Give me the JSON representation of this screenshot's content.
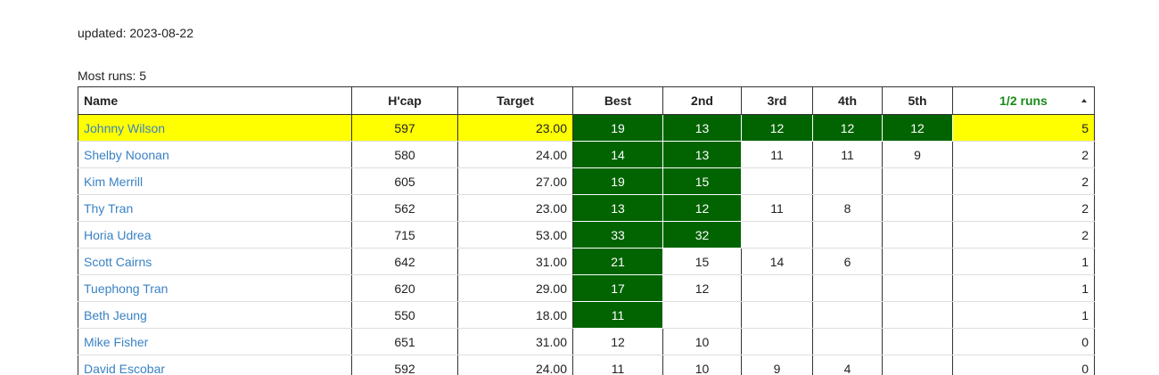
{
  "updated_text": "updated: 2023-08-22",
  "most_runs_text": "Most runs: 5",
  "headers": [
    "Name",
    "H'cap",
    "Target",
    "Best",
    "2nd",
    "3rd",
    "4th",
    "5th",
    "1/2 runs"
  ],
  "colors": {
    "green_cell": "#016401",
    "highlight_row": "#ffff00",
    "link": "#3a82c4",
    "runs_header": "#198a19"
  },
  "rows": [
    {
      "name": "Johnny Wilson",
      "hcap": "597",
      "target": "23.00",
      "runs": [
        "19",
        "13",
        "12",
        "12",
        "12"
      ],
      "green": 5,
      "half": "5",
      "highlight": true
    },
    {
      "name": "Shelby Noonan",
      "hcap": "580",
      "target": "24.00",
      "runs": [
        "14",
        "13",
        "11",
        "11",
        "9"
      ],
      "green": 2,
      "half": "2"
    },
    {
      "name": "Kim Merrill",
      "hcap": "605",
      "target": "27.00",
      "runs": [
        "19",
        "15",
        "",
        "",
        ""
      ],
      "green": 2,
      "half": "2"
    },
    {
      "name": "Thy Tran",
      "hcap": "562",
      "target": "23.00",
      "runs": [
        "13",
        "12",
        "11",
        "8",
        ""
      ],
      "green": 2,
      "half": "2"
    },
    {
      "name": "Horia Udrea",
      "hcap": "715",
      "target": "53.00",
      "runs": [
        "33",
        "32",
        "",
        "",
        ""
      ],
      "green": 2,
      "half": "2"
    },
    {
      "name": "Scott Cairns",
      "hcap": "642",
      "target": "31.00",
      "runs": [
        "21",
        "15",
        "14",
        "6",
        ""
      ],
      "green": 1,
      "half": "1"
    },
    {
      "name": "Tuephong Tran",
      "hcap": "620",
      "target": "29.00",
      "runs": [
        "17",
        "12",
        "",
        "",
        ""
      ],
      "green": 1,
      "half": "1"
    },
    {
      "name": "Beth Jeung",
      "hcap": "550",
      "target": "18.00",
      "runs": [
        "11",
        "",
        "",
        "",
        ""
      ],
      "green": 1,
      "half": "1"
    },
    {
      "name": "Mike Fisher",
      "hcap": "651",
      "target": "31.00",
      "runs": [
        "12",
        "10",
        "",
        "",
        ""
      ],
      "green": 0,
      "half": "0"
    },
    {
      "name": "David Escobar",
      "hcap": "592",
      "target": "24.00",
      "runs": [
        "11",
        "10",
        "9",
        "4",
        ""
      ],
      "green": 0,
      "half": "0"
    }
  ]
}
